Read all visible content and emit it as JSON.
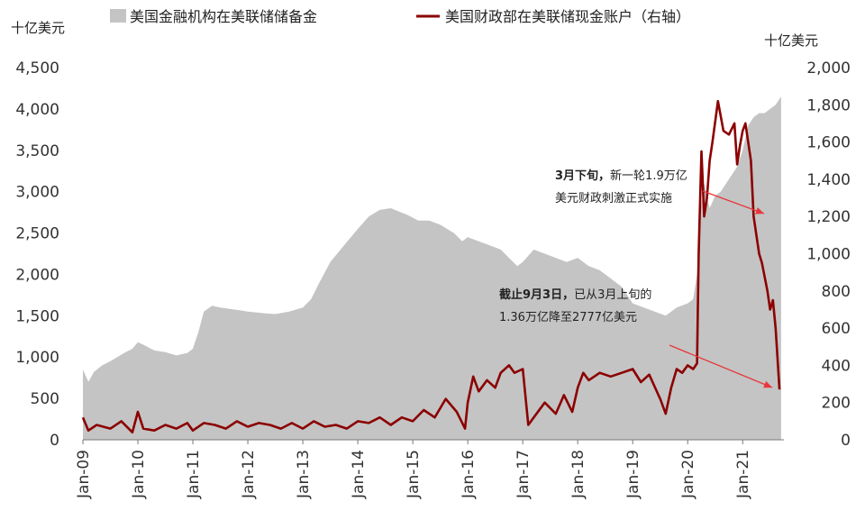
{
  "chart_data": {
    "type": "area+line",
    "left_axis_unit": "十亿美元",
    "right_axis_unit": "十亿美元",
    "left_ylim": [
      0,
      4500
    ],
    "left_ticks": [
      "0",
      "500",
      "1,000",
      "1,500",
      "2,000",
      "2,500",
      "3,000",
      "3,500",
      "4,000",
      "4,500"
    ],
    "right_ylim": [
      0,
      2000
    ],
    "right_ticks": [
      "0",
      "200",
      "400",
      "600",
      "800",
      "1,000",
      "1,200",
      "1,400",
      "1,600",
      "1,800",
      "2,000"
    ],
    "x_tick_labels": [
      "Jan-09",
      "Jan-10",
      "Jan-11",
      "Jan-12",
      "Jan-13",
      "Jan-14",
      "Jan-15",
      "Jan-16",
      "Jan-17",
      "Jan-18",
      "Jan-19",
      "Jan-20",
      "Jan-21"
    ],
    "x_range": [
      2009.0,
      2021.75
    ],
    "series": [
      {
        "name": "美国金融机构在美联储储备金",
        "axis": "left",
        "kind": "area",
        "color": "#c4c4c4",
        "x": [
          2009.0,
          2009.1,
          2009.2,
          2009.35,
          2009.5,
          2009.75,
          2009.9,
          2010.0,
          2010.1,
          2010.3,
          2010.5,
          2010.7,
          2010.9,
          2011.0,
          2011.1,
          2011.2,
          2011.35,
          2011.5,
          2011.7,
          2011.9,
          2012.0,
          2012.3,
          2012.5,
          2012.75,
          2013.0,
          2013.15,
          2013.3,
          2013.5,
          2013.75,
          2014.0,
          2014.2,
          2014.4,
          2014.6,
          2014.75,
          2014.9,
          2015.1,
          2015.3,
          2015.5,
          2015.75,
          2015.9,
          2016.0,
          2016.2,
          2016.4,
          2016.6,
          2016.75,
          2016.9,
          2017.0,
          2017.2,
          2017.4,
          2017.6,
          2017.8,
          2018.0,
          2018.2,
          2018.4,
          2018.6,
          2018.8,
          2019.0,
          2019.2,
          2019.4,
          2019.6,
          2019.8,
          2020.0,
          2020.1,
          2020.17,
          2020.22,
          2020.3,
          2020.4,
          2020.5,
          2020.6,
          2020.7,
          2020.8,
          2020.9,
          2021.0,
          2021.1,
          2021.2,
          2021.3,
          2021.4,
          2021.5,
          2021.6,
          2021.7
        ],
        "values": [
          850,
          700,
          820,
          900,
          950,
          1050,
          1100,
          1180,
          1150,
          1080,
          1060,
          1020,
          1050,
          1100,
          1300,
          1550,
          1620,
          1600,
          1580,
          1560,
          1550,
          1530,
          1520,
          1550,
          1600,
          1700,
          1900,
          2150,
          2350,
          2550,
          2700,
          2780,
          2800,
          2760,
          2720,
          2650,
          2650,
          2600,
          2500,
          2400,
          2450,
          2400,
          2350,
          2300,
          2200,
          2100,
          2150,
          2300,
          2250,
          2200,
          2150,
          2200,
          2100,
          2050,
          1950,
          1850,
          1650,
          1600,
          1550,
          1500,
          1600,
          1650,
          1700,
          2000,
          2700,
          3100,
          2800,
          2950,
          3000,
          3100,
          3200,
          3300,
          3500,
          3800,
          3900,
          3950,
          3950,
          4000,
          4050,
          4150
        ]
      },
      {
        "name": "美国财政部在美联储现金账户（右轴）",
        "axis": "right",
        "kind": "line",
        "color": "#8b0000",
        "x": [
          2009.0,
          2009.1,
          2009.25,
          2009.5,
          2009.7,
          2009.9,
          2010.0,
          2010.1,
          2010.3,
          2010.5,
          2010.7,
          2010.9,
          2011.0,
          2011.2,
          2011.4,
          2011.6,
          2011.8,
          2012.0,
          2012.2,
          2012.4,
          2012.6,
          2012.8,
          2013.0,
          2013.2,
          2013.4,
          2013.6,
          2013.8,
          2014.0,
          2014.2,
          2014.4,
          2014.6,
          2014.8,
          2015.0,
          2015.2,
          2015.4,
          2015.6,
          2015.8,
          2015.95,
          2016.0,
          2016.1,
          2016.2,
          2016.35,
          2016.5,
          2016.6,
          2016.75,
          2016.85,
          2017.0,
          2017.1,
          2017.2,
          2017.4,
          2017.6,
          2017.75,
          2017.9,
          2018.0,
          2018.1,
          2018.2,
          2018.4,
          2018.6,
          2018.8,
          2019.0,
          2019.15,
          2019.3,
          2019.5,
          2019.6,
          2019.7,
          2019.8,
          2019.9,
          2020.0,
          2020.1,
          2020.17,
          2020.2,
          2020.25,
          2020.3,
          2020.35,
          2020.4,
          2020.45,
          2020.55,
          2020.65,
          2020.75,
          2020.85,
          2020.9,
          2020.95,
          2021.0,
          2021.05,
          2021.15,
          2021.2,
          2021.3,
          2021.35,
          2021.45,
          2021.5,
          2021.55,
          2021.6,
          2021.67
        ],
        "values": [
          120,
          50,
          80,
          60,
          100,
          40,
          150,
          60,
          50,
          80,
          60,
          90,
          50,
          90,
          80,
          60,
          100,
          70,
          90,
          80,
          60,
          90,
          60,
          100,
          70,
          80,
          60,
          100,
          90,
          120,
          80,
          120,
          100,
          160,
          120,
          220,
          150,
          60,
          200,
          340,
          260,
          320,
          280,
          360,
          400,
          360,
          380,
          80,
          120,
          200,
          140,
          240,
          150,
          280,
          360,
          320,
          360,
          340,
          360,
          380,
          310,
          350,
          220,
          140,
          280,
          380,
          360,
          400,
          380,
          410,
          1000,
          1550,
          1200,
          1300,
          1500,
          1600,
          1820,
          1660,
          1640,
          1700,
          1480,
          1580,
          1660,
          1700,
          1500,
          1200,
          1000,
          950,
          800,
          700,
          750,
          600,
          270
        ]
      }
    ],
    "annotations": [
      {
        "bold": "3月下旬，",
        "text": "新一轮1.9万亿",
        "line2": "美元财政刺激正式实施"
      },
      {
        "bold": "截止9月3日，",
        "text": "已从3月上旬的",
        "line2": "1.36万亿降至2777亿美元"
      }
    ],
    "arrow_color": "#e8363b"
  }
}
